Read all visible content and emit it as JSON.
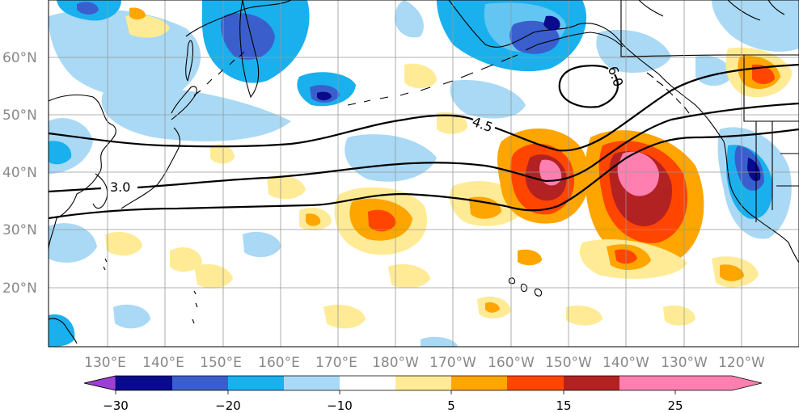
{
  "map": {
    "lat_labels": [
      "60°N",
      "50°N",
      "40°N",
      "30°N",
      "20°N"
    ],
    "lon_labels": [
      "130°E",
      "140°E",
      "150°E",
      "160°E",
      "170°E",
      "180°W",
      "170°W",
      "160°W",
      "150°W",
      "140°W",
      "130°W",
      "120°W"
    ],
    "contour_labels": [
      "3.0",
      "4.5",
      "6.0"
    ],
    "lon_range": [
      "122°E",
      "116°W"
    ],
    "lat_range": [
      "10°N",
      "70°N"
    ]
  },
  "colorbar": {
    "tick_labels": [
      "−30",
      "−20",
      "−10",
      "5",
      "15",
      "25"
    ],
    "tick_values": [
      -30,
      -20,
      -10,
      5,
      15,
      25
    ],
    "extend": "both",
    "colors": [
      "#9c3fd4",
      "#0a0a8c",
      "#3a5fcd",
      "#1ab0ee",
      "#a9d9f5",
      "#ffffff",
      "#ffeb96",
      "#ffa500",
      "#ff4500",
      "#b22222",
      "#ff80b0"
    ]
  },
  "colors": {
    "land_outline": "#000000",
    "grid": "#999999",
    "contour": "#000000",
    "neg_light": "#a9d9f5",
    "neg_mid": "#1ab0ee",
    "neg_dark": "#3a5fcd",
    "neg_deep": "#0a0a8c",
    "pos_light": "#ffeb96",
    "pos_mid": "#ffa500",
    "pos_strong": "#ff4500",
    "pos_dark": "#b22222",
    "pos_max": "#ff80b0"
  }
}
